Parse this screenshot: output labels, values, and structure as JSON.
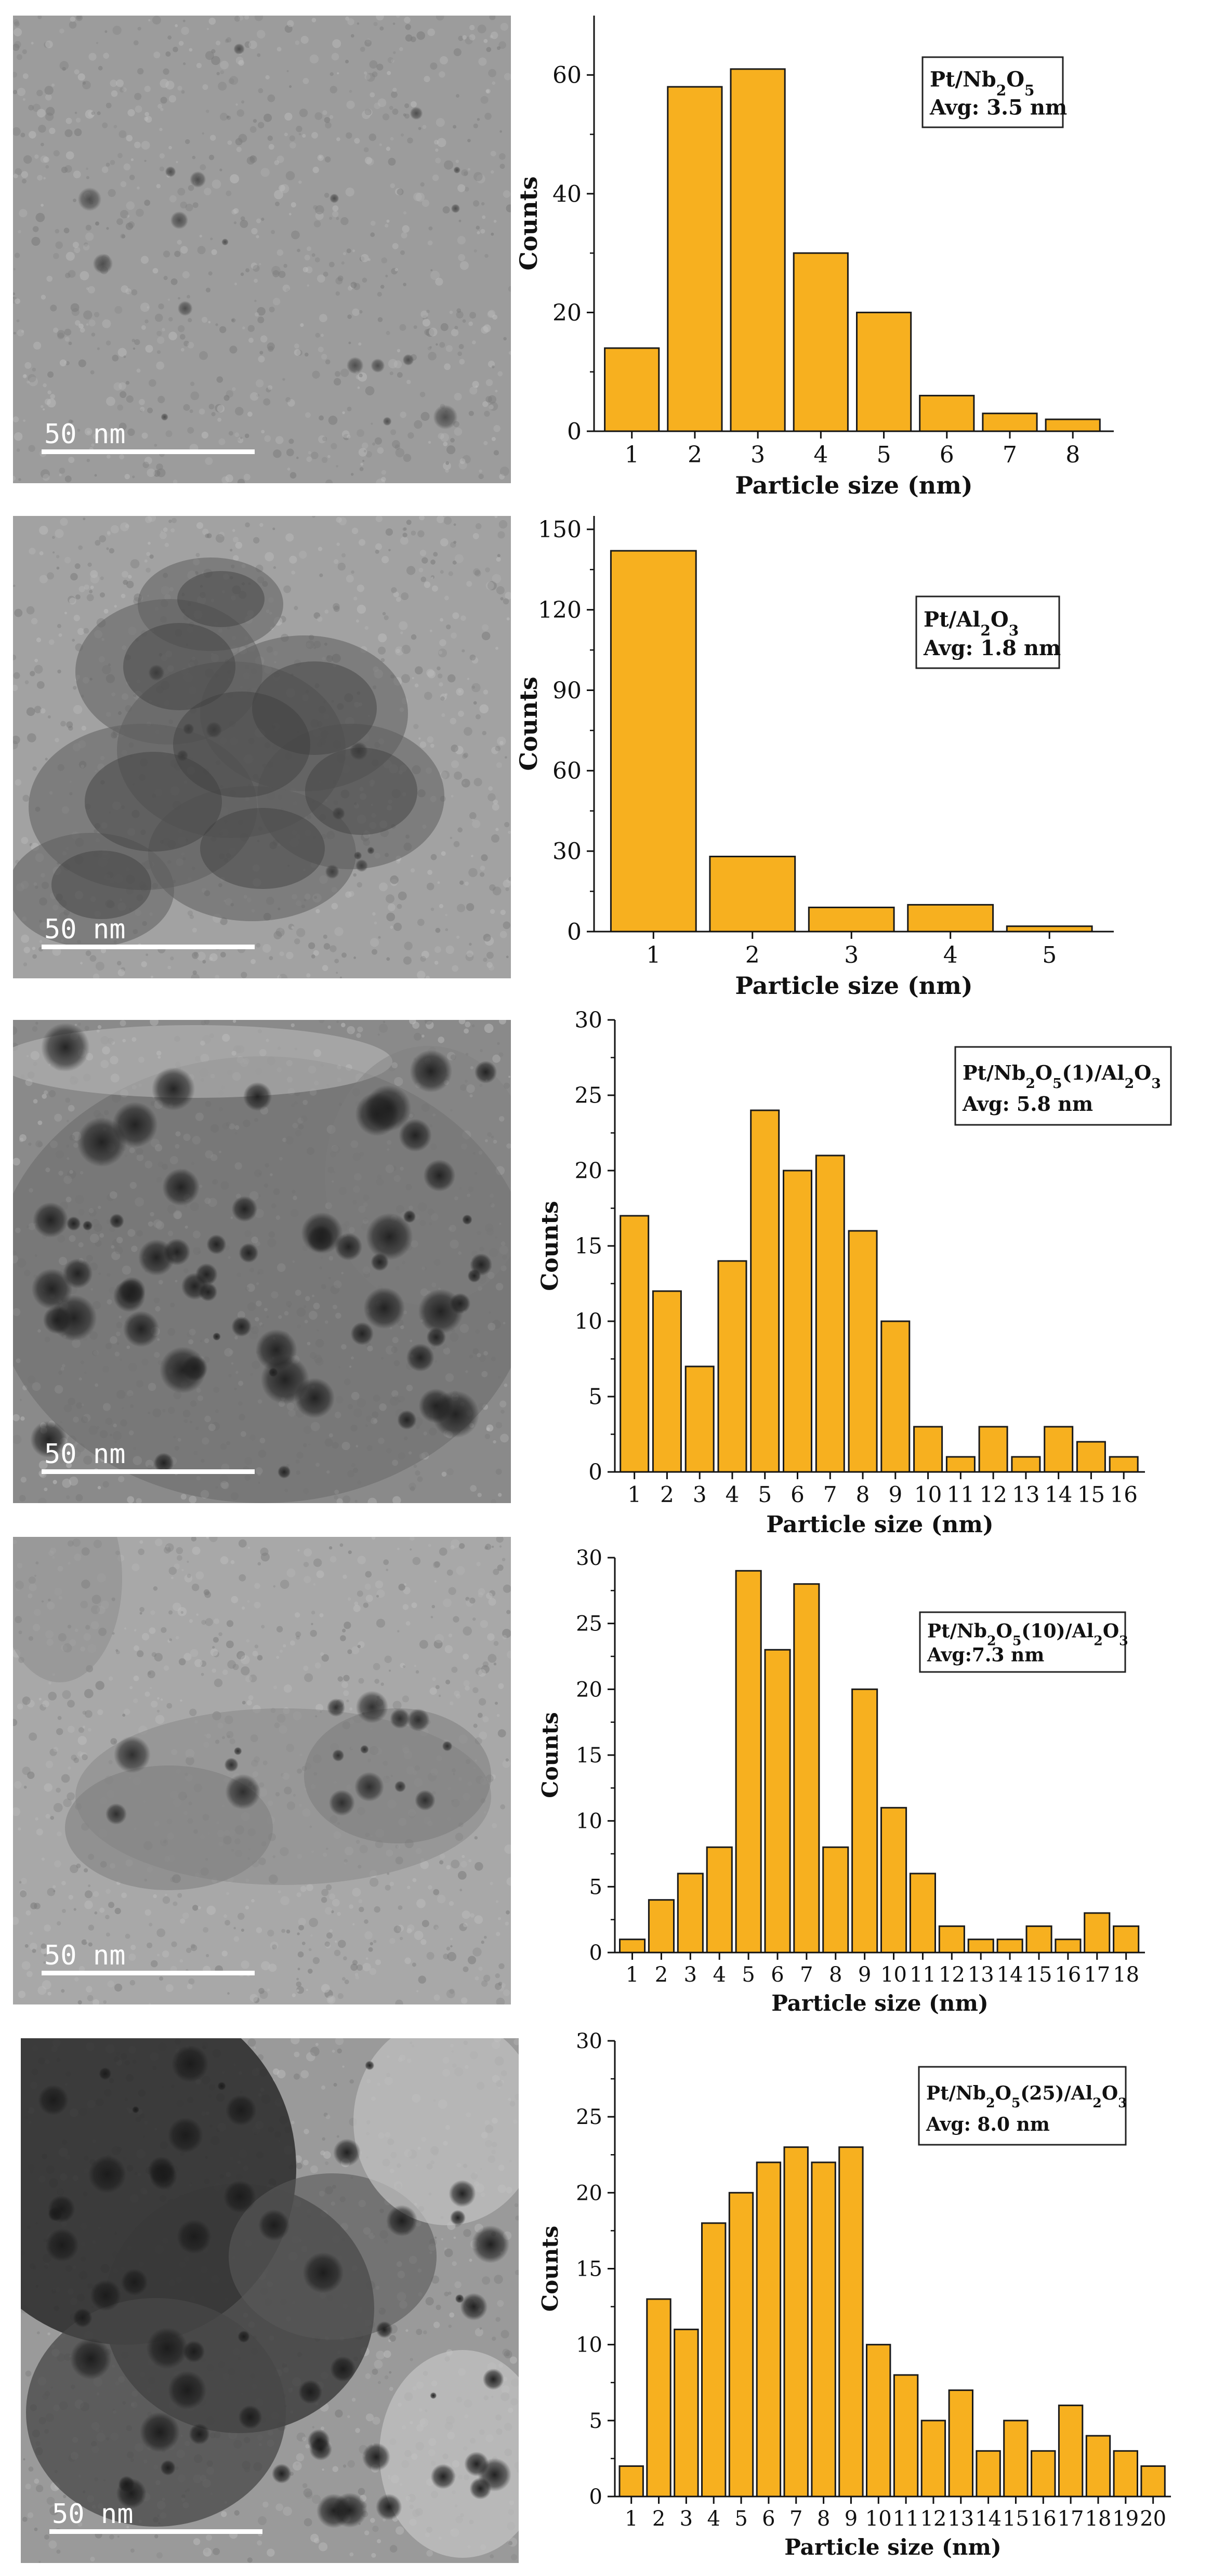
{
  "panels": [
    {
      "scale_label": "50 nm",
      "tem": {
        "tone": "#9c9c9c",
        "texture": "fine",
        "dark": "#4a4a4a"
      },
      "chart_data": {
        "type": "bar",
        "legend": {
          "line1": [
            "Pt/Nb",
            "2",
            "O",
            "5",
            "",
            ""
          ],
          "line2": "Avg: 3.5 nm"
        },
        "categories": [
          1,
          2,
          3,
          4,
          5,
          6,
          7,
          8
        ],
        "values": [
          14,
          58,
          61,
          30,
          20,
          6,
          3,
          2
        ],
        "ylim": [
          0,
          70
        ],
        "yticks": [
          0,
          20,
          40,
          60
        ],
        "xlabel": "Particle size (nm)",
        "ylabel": "Counts"
      }
    },
    {
      "scale_label": "50 nm",
      "tem": {
        "tone": "#a2a2a2",
        "texture": "clusters",
        "dark": "#3a3a3a"
      },
      "chart_data": {
        "type": "bar",
        "legend": {
          "line1": [
            "Pt/Al",
            "2",
            "O",
            "3",
            "",
            ""
          ],
          "line2": "Avg: 1.8 nm"
        },
        "categories": [
          1,
          2,
          3,
          4,
          5
        ],
        "values": [
          142,
          28,
          9,
          10,
          2
        ],
        "ylim": [
          0,
          155
        ],
        "yticks": [
          0,
          30,
          60,
          90,
          120,
          150
        ],
        "xlabel": "Particle size (nm)",
        "ylabel": "Counts"
      }
    },
    {
      "scale_label": "50 nm",
      "tem": {
        "tone": "#8a8a8a",
        "texture": "dense",
        "dark": "#1e1e1e"
      },
      "chart_data": {
        "type": "bar",
        "legend": {
          "line1": [
            "Pt/Nb",
            "2",
            "O",
            "5",
            "(1)/Al",
            "2",
            "O",
            "3"
          ],
          "line2": "Avg: 5.8 nm"
        },
        "categories": [
          1,
          2,
          3,
          4,
          5,
          6,
          7,
          8,
          9,
          10,
          11,
          12,
          13,
          14,
          15,
          16
        ],
        "values": [
          17,
          12,
          7,
          14,
          24,
          20,
          21,
          16,
          10,
          3,
          1,
          3,
          1,
          3,
          2,
          1
        ],
        "ylim": [
          0,
          30
        ],
        "yticks": [
          0,
          5,
          10,
          15,
          20,
          25,
          30
        ],
        "xlabel": "Particle size (nm)",
        "ylabel": "Counts"
      }
    },
    {
      "scale_label": "50 nm",
      "tem": {
        "tone": "#a8a8a8",
        "texture": "ribbon",
        "dark": "#2a2a2a"
      },
      "chart_data": {
        "type": "bar",
        "legend": {
          "line1": [
            "Pt/Nb",
            "2",
            "O",
            "5",
            "(10)/Al",
            "2",
            "O",
            "3"
          ],
          "line2": "Avg:7.3 nm"
        },
        "categories": [
          1,
          2,
          3,
          4,
          5,
          6,
          7,
          8,
          9,
          10,
          11,
          12,
          13,
          14,
          15,
          16,
          17,
          18
        ],
        "values": [
          1,
          4,
          6,
          8,
          29,
          23,
          28,
          8,
          20,
          11,
          6,
          2,
          1,
          1,
          2,
          1,
          3,
          2
        ],
        "ylim": [
          0,
          30
        ],
        "yticks": [
          0,
          5,
          10,
          15,
          20,
          25,
          30
        ],
        "xlabel": "Particle size (nm)",
        "ylabel": "Counts"
      }
    },
    {
      "scale_label": "50 nm",
      "tem": {
        "tone": "#9a9a9a",
        "texture": "bigdark",
        "dark": "#1a1a1a"
      },
      "chart_data": {
        "type": "bar",
        "legend": {
          "line1": [
            "Pt/Nb",
            "2",
            "O",
            "5",
            "(25)/Al",
            "2",
            "O",
            "3"
          ],
          "line2": "Avg: 8.0 nm"
        },
        "categories": [
          1,
          2,
          3,
          4,
          5,
          6,
          7,
          8,
          9,
          10,
          11,
          12,
          13,
          14,
          15,
          16,
          17,
          18,
          19,
          20
        ],
        "values": [
          2,
          13,
          11,
          18,
          20,
          22,
          23,
          22,
          23,
          10,
          8,
          5,
          7,
          3,
          5,
          3,
          6,
          4,
          3,
          2
        ],
        "ylim": [
          0,
          30
        ],
        "yticks": [
          0,
          5,
          10,
          15,
          20,
          25,
          30
        ],
        "xlabel": "Particle size (nm)",
        "ylabel": "Counts"
      }
    }
  ],
  "colors": {
    "bar_fill": "#F7B01F",
    "bar_stroke": "#1a1a1a",
    "axis": "#111111"
  }
}
